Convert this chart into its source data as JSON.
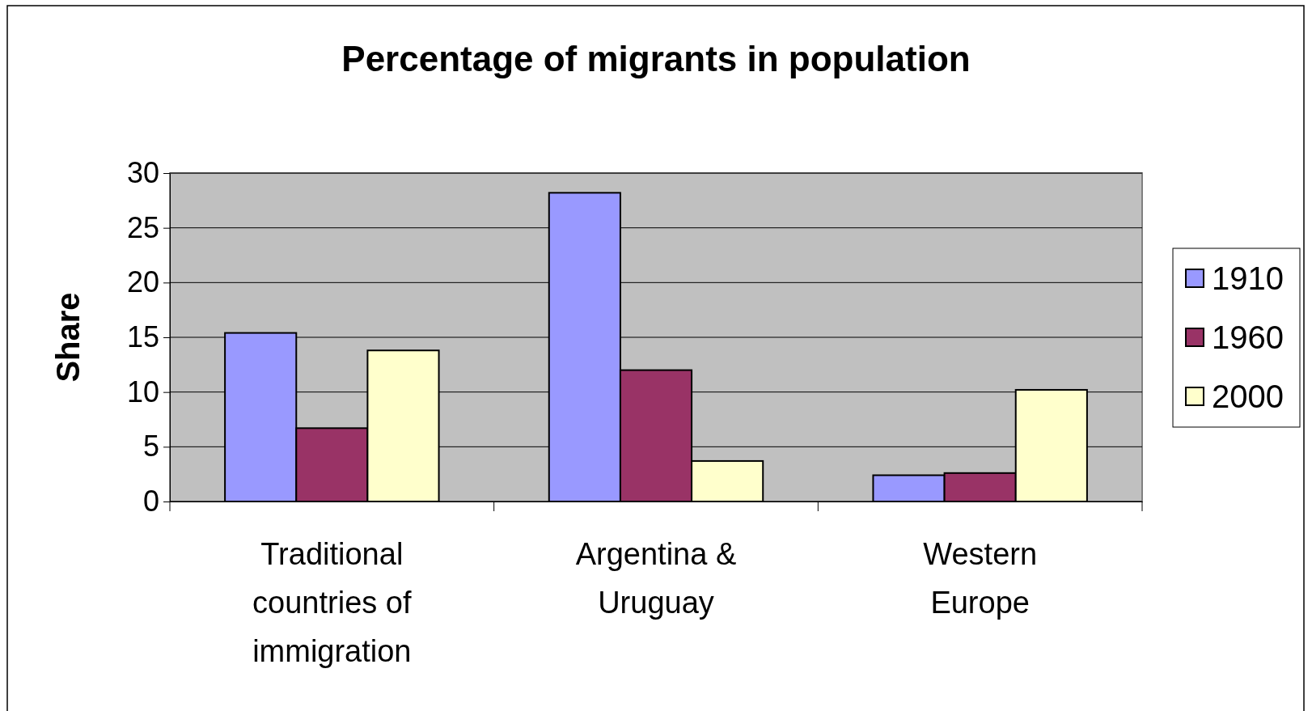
{
  "chart_data": {
    "type": "bar",
    "title": "Percentage of migrants in population",
    "ylabel": "Share",
    "categories": [
      "Traditional countries of immigration",
      "Argentina & Uruguay",
      "Western Europe"
    ],
    "series": [
      {
        "name": "1910",
        "color": "#9999ff",
        "values": [
          15.4,
          28.2,
          2.4
        ]
      },
      {
        "name": "1960",
        "color": "#993366",
        "values": [
          6.7,
          12.0,
          2.6
        ]
      },
      {
        "name": "2000",
        "color": "#ffffcc",
        "values": [
          13.8,
          3.7,
          10.2
        ]
      }
    ],
    "ylim": [
      0,
      30
    ],
    "yticks": [
      0,
      5,
      10,
      15,
      20,
      25,
      30
    ],
    "grid": "y",
    "legend": "right"
  }
}
